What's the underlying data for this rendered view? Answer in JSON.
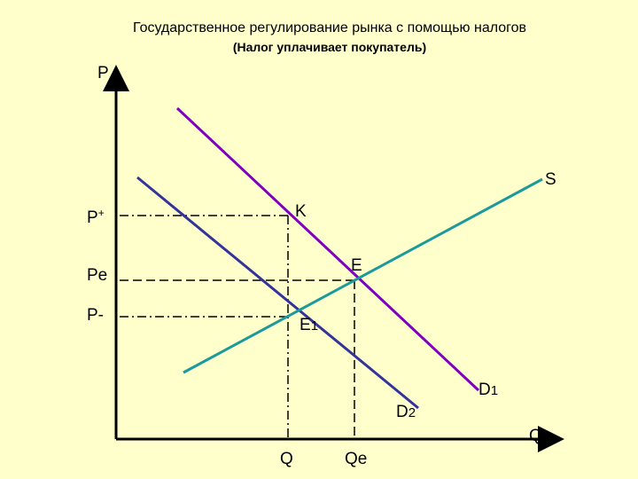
{
  "header": {
    "title": "Государственное регулирование рынка с помощью налогов",
    "subtitle": "(Налог уплачивает покупатель)"
  },
  "axes": {
    "y_label": "P",
    "x_label": "Q"
  },
  "price_labels": {
    "p_plus": {
      "text": "P",
      "sup": "+"
    },
    "p_e": "Pe",
    "p_minus": "P-"
  },
  "quantity_labels": {
    "q": "Q",
    "q_e": "Qe"
  },
  "curve_labels": {
    "s": "S",
    "d1": {
      "text": "D",
      "sub": "1"
    },
    "d2": {
      "text": "D",
      "sub": "2"
    }
  },
  "point_labels": {
    "k": "K",
    "e": "E",
    "e1": {
      "text": "E",
      "sub": "1"
    }
  }
}
